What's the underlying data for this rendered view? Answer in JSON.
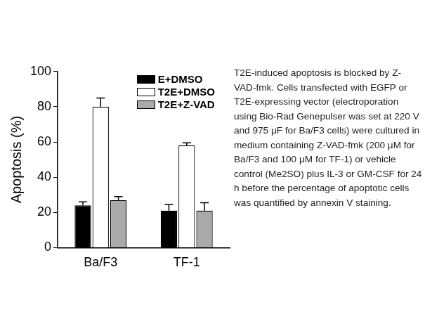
{
  "chart_data": {
    "type": "bar",
    "y_label": "Apoptosis (%)",
    "categories": [
      "Ba/F3",
      "TF-1"
    ],
    "series": [
      {
        "name": "E+DMSO",
        "color": "#000000",
        "values": [
          24,
          21
        ],
        "errors": [
          2,
          3.5
        ]
      },
      {
        "name": "T2E+DMSO",
        "color": "#ffffff",
        "values": [
          80,
          58
        ],
        "errors": [
          5,
          1.5
        ]
      },
      {
        "name": "T2E+Z-VAD",
        "color": "#aaaaaa",
        "values": [
          27,
          21
        ],
        "errors": [
          2,
          4.5
        ]
      }
    ],
    "ylim": [
      0,
      100
    ],
    "yticks": [
      0,
      20,
      40,
      60,
      80,
      100
    ],
    "grid": false,
    "legend": "upper right"
  },
  "caption": "T2E-induced apoptosis is blocked by Z-VAD-fmk. Cells transfected with EGFP or T2E-expressing vector (electroporation using Bio-Rad Genepulser was set at 220 V and 975 μF for Ba/F3 cells) were cultured in medium containing Z-VAD-fmk (200 μM for Ba/F3 and 100 μM for TF-1) or vehicle control (Me2SO) plus IL-3 or GM-CSF for 24 h before the percentage of apoptotic cells was quantified by annexin V staining."
}
